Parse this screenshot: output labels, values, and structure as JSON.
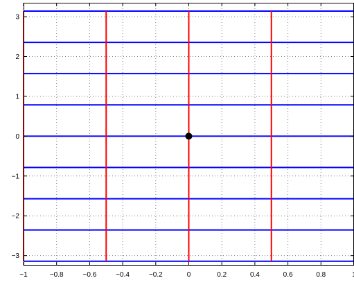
{
  "chart_data": {
    "type": "line",
    "title": "",
    "xlabel": "",
    "ylabel": "",
    "xlim": [
      -1,
      1
    ],
    "ylim": [
      -3.25,
      3.35
    ],
    "x_ticks": [
      -1,
      -0.8,
      -0.6,
      -0.4,
      -0.2,
      0,
      0.2,
      0.4,
      0.6,
      0.8,
      1
    ],
    "x_tick_labels": [
      "−1",
      "−0.8",
      "−0.6",
      "−0.4",
      "−0.2",
      "0",
      "0.2",
      "0.4",
      "0.6",
      "0.8",
      "1"
    ],
    "y_ticks": [
      -3,
      -2,
      -1,
      0,
      1,
      2,
      3
    ],
    "y_tick_labels": [
      "−3",
      "−2",
      "−1",
      "0",
      "1",
      "2",
      "3"
    ],
    "grid": true,
    "grid_style": "dotted",
    "legend": "none",
    "colors": {
      "horizontal": "#0000ff",
      "vertical": "#ff0000",
      "marker": "#000000",
      "grid": "#7f7f7f"
    },
    "horizontal_lines": {
      "x_range": [
        -1,
        1
      ],
      "y_values": [
        -3.1416,
        -2.3562,
        -1.5708,
        -0.7854,
        0,
        0.7854,
        1.5708,
        2.3562,
        3.1416
      ]
    },
    "vertical_lines": {
      "y_range": [
        -3.1416,
        3.1416
      ],
      "x_values": [
        -1,
        -0.5,
        0,
        0.5,
        1
      ]
    },
    "marker": {
      "x": 0,
      "y": 0
    }
  }
}
